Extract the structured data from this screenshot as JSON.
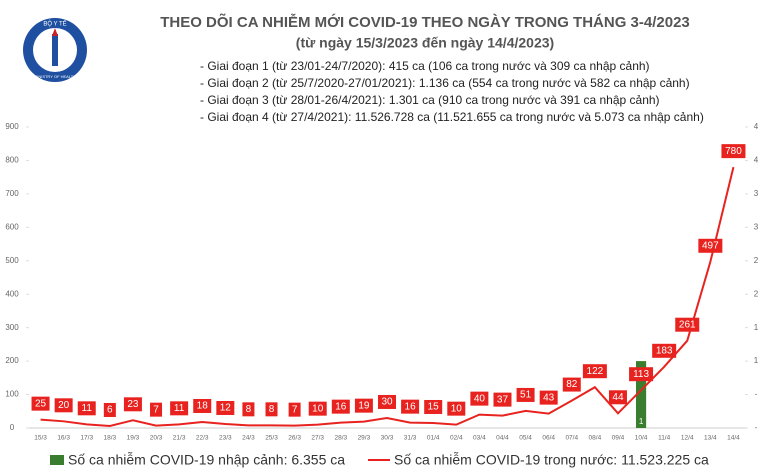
{
  "logo": {
    "top": "BỘ Y TẾ",
    "bottom": "MINISTRY OF HEALTH"
  },
  "chart_data": {
    "type": "bar-line",
    "title": "THEO DÕI CA NHIỄM MỚI COVID-19 THEO NGÀY TRONG THÁNG 3-4/2023",
    "subtitle": "(từ ngày 15/3/2023 đến ngày 14/4/2023)",
    "notes": [
      "- Giai đoạn 1 (từ 23/01-24/7/2020): 415 ca (106 ca trong nước và 309 ca nhập cảnh)",
      "- Giai đoạn 2 (từ 25/7/2020-27/01/2021): 1.136 ca (554 ca trong nước và 582 ca nhập cảnh)",
      "- Giai đoạn 3 (từ 28/01-26/4/2021): 1.301 ca (910 ca trong nước và 391 ca nhập cảnh)",
      "- Giai đoạn 4 (từ 27/4/2021): 11.526.728 ca (11.521.655 ca trong nước và 5.073 ca nhập cảnh)"
    ],
    "categories": [
      "15/3",
      "16/3",
      "17/3",
      "18/3",
      "19/3",
      "20/3",
      "21/3",
      "22/3",
      "23/3",
      "24/3",
      "25/3",
      "26/3",
      "27/3",
      "28/3",
      "29/3",
      "30/3",
      "31/3",
      "01/4",
      "02/4",
      "03/4",
      "04/4",
      "05/4",
      "06/4",
      "07/4",
      "08/4",
      "09/4",
      "10/4",
      "11/4",
      "12/4",
      "13/4",
      "14/4"
    ],
    "series": [
      {
        "name": "Số ca nhiễm COVID-19 nhập cảnh: 6.355 ca",
        "type": "bar",
        "axis": "y2",
        "color": "#3b7d2f",
        "values": [
          0,
          0,
          0,
          0,
          0,
          0,
          0,
          0,
          0,
          0,
          0,
          0,
          0,
          0,
          0,
          0,
          0,
          0,
          0,
          0,
          0,
          0,
          0,
          0,
          0,
          0,
          1,
          0,
          0,
          0,
          0
        ],
        "value_labels": [
          "-",
          "-",
          "-",
          "-",
          "-",
          "-",
          "-",
          "-",
          "-",
          "-",
          "-",
          "-",
          "-",
          "-",
          "-",
          "-",
          "-",
          "-",
          "-",
          "-",
          "-",
          "-",
          "-",
          "-",
          "-",
          "-",
          "1",
          "-",
          "-",
          "-",
          "-"
        ]
      },
      {
        "name": "Số ca nhiễm COVID-19 trong nước: 11.523.225 ca",
        "type": "line",
        "color": "#e8231f",
        "values": [
          25,
          20,
          11,
          6,
          23,
          7,
          11,
          18,
          12,
          8,
          8,
          7,
          10,
          16,
          19,
          30,
          16,
          15,
          10,
          40,
          37,
          51,
          43,
          82,
          122,
          44,
          113,
          183,
          261,
          497,
          780
        ]
      }
    ],
    "ylim": [
      0,
      900
    ],
    "yticks": [
      0,
      100,
      200,
      300,
      400,
      500,
      600,
      700,
      800,
      900
    ],
    "y2lim": [
      0,
      4.5
    ],
    "y2ticks": [
      {
        "value": 0,
        "label": "-"
      },
      {
        "value": 0.5,
        "label": "-"
      },
      {
        "value": 1,
        "label": "1"
      },
      {
        "value": 1.5,
        "label": "1"
      },
      {
        "value": 2,
        "label": "2"
      },
      {
        "value": 2.5,
        "label": "2"
      },
      {
        "value": 3,
        "label": "3"
      },
      {
        "value": 3.5,
        "label": "3"
      },
      {
        "value": 4,
        "label": "4"
      },
      {
        "value": 4.5,
        "label": "4"
      }
    ]
  }
}
